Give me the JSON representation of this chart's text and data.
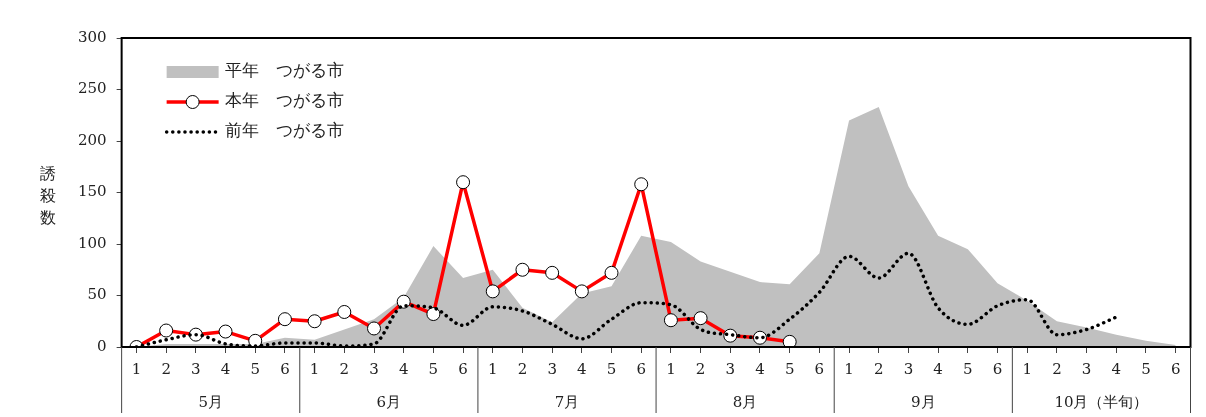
{
  "chart_data": {
    "type": "line",
    "ylabel": "誘殺数",
    "categories": [
      "1",
      "2",
      "3",
      "4",
      "5",
      "6",
      "1",
      "2",
      "3",
      "4",
      "5",
      "6",
      "1",
      "2",
      "3",
      "4",
      "5",
      "6",
      "1",
      "2",
      "3",
      "4",
      "5",
      "6",
      "1",
      "2",
      "3",
      "4",
      "5",
      "6",
      "1",
      "2",
      "3",
      "4",
      "5",
      "6"
    ],
    "annotations": [
      "5月",
      "6月",
      "7月",
      "8月",
      "9月",
      "10月（半旬）"
    ],
    "ylim": [
      0,
      300
    ],
    "yticks": [
      0,
      50,
      100,
      150,
      200,
      250,
      300
    ],
    "grid": false,
    "legend": "top left",
    "series": [
      {
        "name": "平年　つがる市",
        "type": "area",
        "color": "#c0c0c0",
        "values": [
          0,
          3,
          3,
          3,
          3,
          9,
          7,
          17,
          27,
          48,
          98,
          67,
          75,
          38,
          24,
          52,
          59,
          108,
          102,
          83,
          73,
          63,
          61,
          91,
          220,
          233,
          156,
          108,
          95,
          62,
          45,
          25,
          19,
          12,
          6,
          2
        ]
      },
      {
        "name": "本年　つがる市",
        "color": "#ff0000",
        "marker": "circle",
        "line_style": "solid",
        "values": [
          0,
          16,
          12,
          15,
          6,
          27,
          25,
          34,
          18,
          44,
          32,
          160,
          54,
          75,
          72,
          54,
          72,
          158,
          26,
          28,
          11,
          9,
          5,
          null,
          null,
          null,
          null,
          null,
          null,
          null,
          null,
          null,
          null,
          null,
          null,
          null
        ]
      },
      {
        "name": "前年　つがる市",
        "color": "#000000",
        "marker": "none",
        "line_style": "dotted",
        "values": [
          0,
          7,
          12,
          3,
          1,
          4,
          4,
          1,
          3,
          40,
          38,
          21,
          39,
          35,
          22,
          8,
          27,
          43,
          41,
          17,
          12,
          9,
          27,
          53,
          88,
          67,
          91,
          38,
          22,
          40,
          46,
          12,
          17,
          29,
          null,
          null
        ]
      }
    ]
  }
}
